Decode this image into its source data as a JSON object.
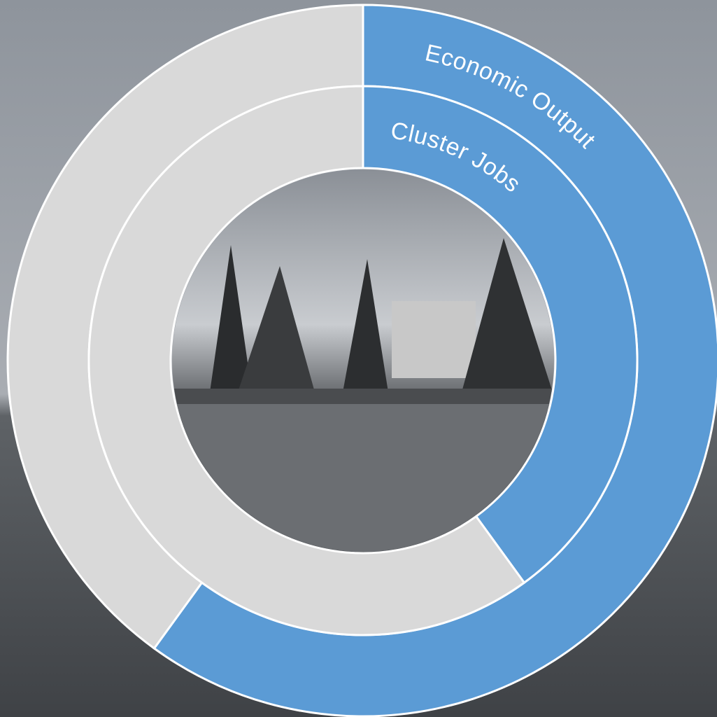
{
  "chart_data": {
    "type": "donut",
    "colors": [
      "#5b9bd5",
      "#d9d9d9"
    ],
    "series": [
      {
        "name": "Economic Output",
        "values": [
          60,
          40
        ]
      },
      {
        "name": "Cluster Jobs",
        "values": [
          40,
          60
        ]
      }
    ]
  }
}
